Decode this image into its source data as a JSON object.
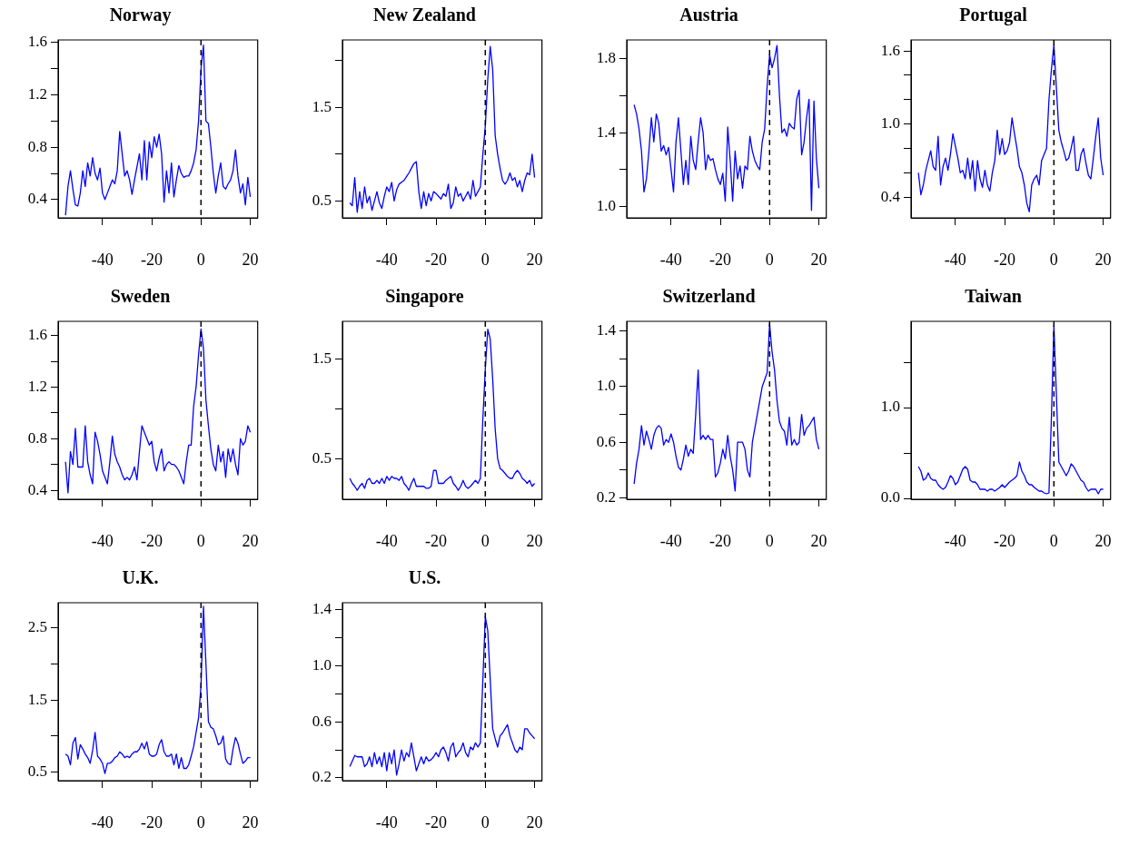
{
  "chart_data": [
    {
      "type": "line",
      "title": "Norway",
      "color": "#0000ff",
      "marker": "none",
      "xlim": [
        -58,
        23
      ],
      "xticks": [
        -40,
        -20,
        0,
        20
      ],
      "ylim": [
        0.26,
        1.62
      ],
      "yticks": [
        0.4,
        {
          "value": 0.6,
          "label": null
        },
        0.8,
        {
          "value": 1,
          "label": null
        },
        1.2,
        {
          "value": 1.4,
          "label": null
        },
        1.6
      ],
      "ref_lines": [
        {
          "axis": "x",
          "value": 0,
          "color": "#000000",
          "line_style": "dashed"
        }
      ],
      "x": [
        -55,
        -54,
        -53,
        -52,
        -51,
        -50,
        -49,
        -48,
        -47,
        -46,
        -45,
        -44,
        -43,
        -42,
        -41,
        -40,
        -39,
        -38,
        -37,
        -36,
        -35,
        -34,
        -33,
        -32,
        -31,
        -30,
        -29,
        -28,
        -27,
        -26,
        -25,
        -24,
        -23,
        -22,
        -21,
        -20,
        -19,
        -18,
        -17,
        -16,
        -15,
        -14,
        -13,
        -12,
        -11,
        -10,
        -9,
        -8,
        -7,
        -6,
        -5,
        -4,
        -3,
        -2,
        -1,
        0,
        1,
        2,
        3,
        4,
        5,
        6,
        7,
        8,
        9,
        10,
        11,
        12,
        13,
        14,
        15,
        16,
        17,
        18,
        19,
        20
      ],
      "values": [
        0.28,
        0.5,
        0.62,
        0.48,
        0.36,
        0.35,
        0.45,
        0.62,
        0.5,
        0.68,
        0.58,
        0.72,
        0.6,
        0.55,
        0.64,
        0.45,
        0.4,
        0.45,
        0.5,
        0.55,
        0.52,
        0.62,
        0.92,
        0.75,
        0.58,
        0.62,
        0.55,
        0.44,
        0.55,
        0.65,
        0.75,
        0.55,
        0.85,
        0.55,
        0.84,
        0.72,
        0.88,
        0.8,
        0.9,
        0.75,
        0.38,
        0.62,
        0.45,
        0.68,
        0.42,
        0.55,
        0.66,
        0.6,
        0.57,
        0.58,
        0.58,
        0.62,
        0.68,
        0.78,
        1.0,
        1.4,
        1.58,
        1.0,
        0.98,
        0.8,
        0.6,
        0.45,
        0.58,
        0.68,
        0.5,
        0.48,
        0.52,
        0.55,
        0.62,
        0.78,
        0.58,
        0.45,
        0.52,
        0.36,
        0.57,
        0.42
      ]
    },
    {
      "type": "line",
      "title": "New Zealand",
      "color": "#0000ff",
      "marker": "none",
      "xlim": [
        -58,
        23
      ],
      "xticks": [
        -40,
        -20,
        0,
        20
      ],
      "ylim": [
        0.32,
        2.22
      ],
      "yticks": [
        0.5,
        {
          "value": 1,
          "label": null
        },
        1.5,
        {
          "value": 2,
          "label": null
        }
      ],
      "ref_lines": [
        {
          "axis": "x",
          "value": 0,
          "color": "#000000",
          "line_style": "dashed"
        }
      ],
      "x": [
        -55,
        -54,
        -53,
        -52,
        -51,
        -50,
        -49,
        -48,
        -47,
        -46,
        -45,
        -44,
        -43,
        -42,
        -41,
        -40,
        -39,
        -38,
        -37,
        -36,
        -35,
        -34,
        -33,
        -32,
        -31,
        -30,
        -29,
        -28,
        -27,
        -26,
        -25,
        -24,
        -23,
        -22,
        -21,
        -20,
        -19,
        -18,
        -17,
        -16,
        -15,
        -14,
        -13,
        -12,
        -11,
        -10,
        -9,
        -8,
        -7,
        -6,
        -5,
        -4,
        -3,
        -2,
        -1,
        0,
        1,
        2,
        3,
        4,
        5,
        6,
        7,
        8,
        9,
        10,
        11,
        12,
        13,
        14,
        15,
        16,
        17,
        18,
        19,
        20
      ],
      "values": [
        0.48,
        0.45,
        0.75,
        0.38,
        0.6,
        0.42,
        0.65,
        0.48,
        0.55,
        0.4,
        0.5,
        0.6,
        0.48,
        0.42,
        0.55,
        0.65,
        0.6,
        0.7,
        0.5,
        0.62,
        0.68,
        0.7,
        0.72,
        0.76,
        0.8,
        0.85,
        0.9,
        0.92,
        0.6,
        0.42,
        0.6,
        0.45,
        0.58,
        0.5,
        0.6,
        0.58,
        0.55,
        0.52,
        0.58,
        0.55,
        0.68,
        0.42,
        0.48,
        0.65,
        0.55,
        0.58,
        0.5,
        0.55,
        0.6,
        0.52,
        0.72,
        0.55,
        0.6,
        0.65,
        1.0,
        1.3,
        1.8,
        2.15,
        1.9,
        1.2,
        1.0,
        0.85,
        0.72,
        0.68,
        0.72,
        0.8,
        0.72,
        0.75,
        0.65,
        0.72,
        0.6,
        0.72,
        0.8,
        0.78,
        1.0,
        0.75
      ]
    },
    {
      "type": "line",
      "title": "Austria",
      "color": "#0000ff",
      "marker": "none",
      "xlim": [
        -58,
        23
      ],
      "xticks": [
        -40,
        -20,
        0,
        20
      ],
      "ylim": [
        0.94,
        1.9
      ],
      "yticks": [
        {
          "value": 1,
          "label": "1.0"
        },
        {
          "value": 1.2,
          "label": null
        },
        1.4,
        {
          "value": 1.6,
          "label": null
        },
        1.8
      ],
      "ref_lines": [
        {
          "axis": "x",
          "value": 0,
          "color": "#000000",
          "line_style": "dashed"
        }
      ],
      "x": [
        -55,
        -54,
        -53,
        -52,
        -51,
        -50,
        -49,
        -48,
        -47,
        -46,
        -45,
        -44,
        -43,
        -42,
        -41,
        -40,
        -39,
        -38,
        -37,
        -36,
        -35,
        -34,
        -33,
        -32,
        -31,
        -30,
        -29,
        -28,
        -27,
        -26,
        -25,
        -24,
        -23,
        -22,
        -21,
        -20,
        -19,
        -18,
        -17,
        -16,
        -15,
        -14,
        -13,
        -12,
        -11,
        -10,
        -9,
        -8,
        -7,
        -6,
        -5,
        -4,
        -3,
        -2,
        -1,
        0,
        1,
        2,
        3,
        4,
        5,
        6,
        7,
        8,
        9,
        10,
        11,
        12,
        13,
        14,
        15,
        16,
        17,
        18,
        19,
        20
      ],
      "values": [
        1.55,
        1.5,
        1.42,
        1.3,
        1.08,
        1.15,
        1.3,
        1.48,
        1.35,
        1.5,
        1.45,
        1.3,
        1.33,
        1.28,
        1.32,
        1.2,
        1.08,
        1.35,
        1.48,
        1.3,
        1.12,
        1.25,
        1.12,
        1.38,
        1.25,
        1.2,
        1.35,
        1.48,
        1.4,
        1.2,
        1.28,
        1.25,
        1.26,
        1.2,
        1.15,
        1.12,
        1.18,
        1.03,
        1.43,
        1.25,
        1.03,
        1.3,
        1.15,
        1.22,
        1.1,
        1.22,
        1.2,
        1.38,
        1.3,
        1.25,
        1.22,
        1.2,
        1.35,
        1.42,
        1.65,
        1.82,
        1.75,
        1.8,
        1.87,
        1.6,
        1.4,
        1.42,
        1.38,
        1.45,
        1.43,
        1.42,
        1.58,
        1.63,
        1.28,
        1.35,
        1.48,
        1.58,
        0.98,
        1.57,
        1.26,
        1.1
      ]
    },
    {
      "type": "line",
      "title": "Portugal",
      "color": "#0000ff",
      "marker": "none",
      "xlim": [
        -58,
        23
      ],
      "xticks": [
        -40,
        -20,
        0,
        20
      ],
      "ylim": [
        0.23,
        1.69
      ],
      "yticks": [
        0.4,
        {
          "value": 0.6,
          "label": null
        },
        {
          "value": 0.8,
          "label": null
        },
        {
          "value": 1,
          "label": "1.0"
        },
        {
          "value": 1.2,
          "label": null
        },
        {
          "value": 1.4,
          "label": null
        },
        1.6
      ],
      "ref_lines": [
        {
          "axis": "x",
          "value": 0,
          "color": "#000000",
          "line_style": "dashed"
        }
      ],
      "x": [
        -55,
        -54,
        -53,
        -52,
        -51,
        -50,
        -49,
        -48,
        -47,
        -46,
        -45,
        -44,
        -43,
        -42,
        -41,
        -40,
        -39,
        -38,
        -37,
        -36,
        -35,
        -34,
        -33,
        -32,
        -31,
        -30,
        -29,
        -28,
        -27,
        -26,
        -25,
        -24,
        -23,
        -22,
        -21,
        -20,
        -19,
        -18,
        -17,
        -16,
        -15,
        -14,
        -13,
        -12,
        -11,
        -10,
        -9,
        -8,
        -7,
        -6,
        -5,
        -4,
        -3,
        -2,
        -1,
        0,
        1,
        2,
        3,
        4,
        5,
        6,
        7,
        8,
        9,
        10,
        11,
        12,
        13,
        14,
        15,
        16,
        17,
        18,
        19,
        20
      ],
      "values": [
        0.6,
        0.42,
        0.5,
        0.62,
        0.7,
        0.78,
        0.65,
        0.62,
        0.9,
        0.5,
        0.65,
        0.72,
        0.62,
        0.75,
        0.92,
        0.82,
        0.72,
        0.6,
        0.62,
        0.55,
        0.72,
        0.55,
        0.7,
        0.45,
        0.7,
        0.55,
        0.48,
        0.62,
        0.5,
        0.45,
        0.6,
        0.7,
        0.95,
        0.75,
        0.88,
        0.75,
        0.78,
        0.85,
        1.05,
        0.92,
        0.8,
        0.65,
        0.6,
        0.5,
        0.35,
        0.28,
        0.5,
        0.55,
        0.58,
        0.5,
        0.7,
        0.75,
        0.8,
        1.2,
        1.45,
        1.65,
        1.3,
        0.95,
        0.85,
        0.78,
        0.7,
        0.72,
        0.8,
        0.9,
        0.62,
        0.62,
        0.75,
        0.8,
        0.68,
        0.58,
        0.55,
        0.72,
        0.9,
        1.05,
        0.72,
        0.58
      ]
    },
    {
      "type": "line",
      "title": "Sweden",
      "color": "#0000ff",
      "marker": "none",
      "xlim": [
        -58,
        23
      ],
      "xticks": [
        -40,
        -20,
        0,
        20
      ],
      "ylim": [
        0.33,
        1.71
      ],
      "yticks": [
        0.4,
        {
          "value": 0.6,
          "label": null
        },
        0.8,
        {
          "value": 1,
          "label": null
        },
        1.2,
        {
          "value": 1.4,
          "label": null
        },
        1.6
      ],
      "ref_lines": [
        {
          "axis": "x",
          "value": 0,
          "color": "#000000",
          "line_style": "dashed"
        }
      ],
      "x": [
        -55,
        -54,
        -53,
        -52,
        -51,
        -50,
        -49,
        -48,
        -47,
        -46,
        -45,
        -44,
        -43,
        -42,
        -41,
        -40,
        -39,
        -38,
        -37,
        -36,
        -35,
        -34,
        -33,
        -32,
        -31,
        -30,
        -29,
        -28,
        -27,
        -26,
        -25,
        -24,
        -23,
        -22,
        -21,
        -20,
        -19,
        -18,
        -17,
        -16,
        -15,
        -14,
        -13,
        -12,
        -11,
        -10,
        -9,
        -8,
        -7,
        -6,
        -5,
        -4,
        -3,
        -2,
        -1,
        0,
        1,
        2,
        3,
        4,
        5,
        6,
        7,
        8,
        9,
        10,
        11,
        12,
        13,
        14,
        15,
        16,
        17,
        18,
        19,
        20
      ],
      "values": [
        0.62,
        0.38,
        0.7,
        0.6,
        0.88,
        0.58,
        0.58,
        0.58,
        0.9,
        0.62,
        0.52,
        0.45,
        0.85,
        0.78,
        0.68,
        0.55,
        0.5,
        0.45,
        0.62,
        0.82,
        0.68,
        0.62,
        0.58,
        0.52,
        0.48,
        0.5,
        0.48,
        0.52,
        0.58,
        0.48,
        0.7,
        0.9,
        0.85,
        0.8,
        0.75,
        0.78,
        0.62,
        0.55,
        0.65,
        0.72,
        0.55,
        0.6,
        0.62,
        0.6,
        0.6,
        0.58,
        0.55,
        0.5,
        0.45,
        0.62,
        0.75,
        0.75,
        1.05,
        1.2,
        1.45,
        1.65,
        1.5,
        1.1,
        0.9,
        0.72,
        0.6,
        0.55,
        0.75,
        0.62,
        0.7,
        0.5,
        0.72,
        0.62,
        0.72,
        0.6,
        0.52,
        0.8,
        0.75,
        0.78,
        0.9,
        0.85
      ]
    },
    {
      "type": "line",
      "title": "Singapore",
      "color": "#0000ff",
      "marker": "none",
      "xlim": [
        -58,
        23
      ],
      "xticks": [
        -40,
        -20,
        0,
        20
      ],
      "ylim": [
        0.09,
        1.88
      ],
      "yticks": [
        0.5,
        {
          "value": 1,
          "label": null
        },
        1.5
      ],
      "ref_lines": [
        {
          "axis": "x",
          "value": 0,
          "color": "#000000",
          "line_style": "dashed"
        }
      ],
      "x": [
        -55,
        -54,
        -53,
        -52,
        -51,
        -50,
        -49,
        -48,
        -47,
        -46,
        -45,
        -44,
        -43,
        -42,
        -41,
        -40,
        -39,
        -38,
        -37,
        -36,
        -35,
        -34,
        -33,
        -32,
        -31,
        -30,
        -29,
        -28,
        -27,
        -26,
        -25,
        -24,
        -23,
        -22,
        -21,
        -20,
        -19,
        -18,
        -17,
        -16,
        -15,
        -14,
        -13,
        -12,
        -11,
        -10,
        -9,
        -8,
        -7,
        -6,
        -5,
        -4,
        -3,
        -2,
        -1,
        0,
        1,
        2,
        3,
        4,
        5,
        6,
        7,
        8,
        9,
        10,
        11,
        12,
        13,
        14,
        15,
        16,
        17,
        18,
        19,
        20
      ],
      "values": [
        0.3,
        0.25,
        0.22,
        0.18,
        0.22,
        0.25,
        0.2,
        0.28,
        0.3,
        0.25,
        0.25,
        0.28,
        0.25,
        0.3,
        0.25,
        0.32,
        0.28,
        0.32,
        0.3,
        0.3,
        0.28,
        0.32,
        0.25,
        0.22,
        0.18,
        0.25,
        0.3,
        0.22,
        0.22,
        0.22,
        0.22,
        0.2,
        0.2,
        0.22,
        0.38,
        0.38,
        0.25,
        0.25,
        0.25,
        0.28,
        0.3,
        0.32,
        0.25,
        0.22,
        0.18,
        0.22,
        0.28,
        0.22,
        0.2,
        0.22,
        0.25,
        0.28,
        0.25,
        0.3,
        0.9,
        1.4,
        1.8,
        1.7,
        1.3,
        0.8,
        0.5,
        0.4,
        0.38,
        0.35,
        0.32,
        0.3,
        0.3,
        0.35,
        0.38,
        0.35,
        0.3,
        0.28,
        0.25,
        0.28,
        0.22,
        0.25
      ]
    },
    {
      "type": "line",
      "title": "Switzerland",
      "color": "#0000ff",
      "marker": "none",
      "xlim": [
        -58,
        23
      ],
      "xticks": [
        -40,
        -20,
        0,
        20
      ],
      "ylim": [
        0.19,
        1.47
      ],
      "yticks": [
        0.2,
        {
          "value": 0.4,
          "label": null
        },
        0.6,
        {
          "value": 0.8,
          "label": null
        },
        {
          "value": 1,
          "label": "1.0"
        },
        {
          "value": 1.2,
          "label": null
        },
        1.4
      ],
      "ref_lines": [
        {
          "axis": "x",
          "value": 0,
          "color": "#000000",
          "line_style": "dashed"
        }
      ],
      "x": [
        -55,
        -54,
        -53,
        -52,
        -51,
        -50,
        -49,
        -48,
        -47,
        -46,
        -45,
        -44,
        -43,
        -42,
        -41,
        -40,
        -39,
        -38,
        -37,
        -36,
        -35,
        -34,
        -33,
        -32,
        -31,
        -30,
        -29,
        -28,
        -27,
        -26,
        -25,
        -24,
        -23,
        -22,
        -21,
        -20,
        -19,
        -18,
        -17,
        -16,
        -15,
        -14,
        -13,
        -12,
        -11,
        -10,
        -9,
        -8,
        -7,
        -6,
        -5,
        -4,
        -3,
        -2,
        -1,
        0,
        1,
        2,
        3,
        4,
        5,
        6,
        7,
        8,
        9,
        10,
        11,
        12,
        13,
        14,
        15,
        16,
        17,
        18,
        19,
        20
      ],
      "values": [
        0.3,
        0.45,
        0.55,
        0.72,
        0.58,
        0.68,
        0.62,
        0.55,
        0.65,
        0.7,
        0.72,
        0.7,
        0.58,
        0.62,
        0.6,
        0.66,
        0.6,
        0.5,
        0.42,
        0.4,
        0.48,
        0.58,
        0.5,
        0.55,
        0.52,
        0.8,
        1.12,
        0.62,
        0.65,
        0.62,
        0.65,
        0.62,
        0.62,
        0.35,
        0.38,
        0.45,
        0.55,
        0.48,
        0.65,
        0.5,
        0.4,
        0.25,
        0.6,
        0.6,
        0.6,
        0.55,
        0.4,
        0.35,
        0.6,
        0.7,
        0.8,
        0.9,
        1.0,
        1.05,
        1.1,
        1.45,
        1.25,
        1.12,
        0.9,
        0.75,
        0.7,
        0.68,
        0.58,
        0.78,
        0.58,
        0.62,
        0.58,
        0.6,
        0.8,
        0.65,
        0.7,
        0.72,
        0.75,
        0.78,
        0.62,
        0.55
      ]
    },
    {
      "type": "line",
      "title": "Taiwan",
      "color": "#0000ff",
      "marker": "none",
      "xlim": [
        -58,
        23
      ],
      "xticks": [
        -40,
        -20,
        0,
        20
      ],
      "ylim": [
        -0.01,
        1.95
      ],
      "yticks": [
        {
          "value": 0,
          "label": "0.0"
        },
        {
          "value": 0.5,
          "label": null
        },
        {
          "value": 1,
          "label": "1.0"
        },
        {
          "value": 1.5,
          "label": null
        }
      ],
      "ref_lines": [
        {
          "axis": "x",
          "value": 0,
          "color": "#000000",
          "line_style": "dashed"
        }
      ],
      "x": [
        -55,
        -54,
        -53,
        -52,
        -51,
        -50,
        -49,
        -48,
        -47,
        -46,
        -45,
        -44,
        -43,
        -42,
        -41,
        -40,
        -39,
        -38,
        -37,
        -36,
        -35,
        -34,
        -33,
        -32,
        -31,
        -30,
        -29,
        -28,
        -27,
        -26,
        -25,
        -24,
        -23,
        -22,
        -21,
        -20,
        -19,
        -18,
        -17,
        -16,
        -15,
        -14,
        -13,
        -12,
        -11,
        -10,
        -9,
        -8,
        -7,
        -6,
        -5,
        -4,
        -3,
        -2,
        -1,
        0,
        1,
        2,
        3,
        4,
        5,
        6,
        7,
        8,
        9,
        10,
        11,
        12,
        13,
        14,
        15,
        16,
        17,
        18,
        19,
        20
      ],
      "values": [
        0.35,
        0.3,
        0.2,
        0.22,
        0.28,
        0.22,
        0.2,
        0.2,
        0.15,
        0.12,
        0.1,
        0.12,
        0.18,
        0.25,
        0.22,
        0.15,
        0.18,
        0.25,
        0.32,
        0.35,
        0.32,
        0.2,
        0.18,
        0.18,
        0.15,
        0.1,
        0.1,
        0.1,
        0.08,
        0.1,
        0.1,
        0.08,
        0.1,
        0.12,
        0.15,
        0.12,
        0.15,
        0.18,
        0.2,
        0.22,
        0.25,
        0.4,
        0.3,
        0.25,
        0.18,
        0.15,
        0.15,
        0.12,
        0.1,
        0.08,
        0.08,
        0.06,
        0.05,
        0.06,
        0.9,
        1.9,
        1.15,
        0.4,
        0.35,
        0.3,
        0.25,
        0.3,
        0.38,
        0.35,
        0.3,
        0.25,
        0.2,
        0.18,
        0.12,
        0.08,
        0.1,
        0.1,
        0.1,
        0.05,
        0.1,
        0.1
      ]
    },
    {
      "type": "line",
      "title": "U.K.",
      "color": "#0000ff",
      "marker": "none",
      "xlim": [
        -58,
        23
      ],
      "xticks": [
        -40,
        -20,
        0,
        20
      ],
      "ylim": [
        0.38,
        2.85
      ],
      "yticks": [
        0.5,
        {
          "value": 1,
          "label": null
        },
        1.5,
        {
          "value": 2,
          "label": null
        },
        2.5
      ],
      "ref_lines": [
        {
          "axis": "x",
          "value": 0,
          "color": "#000000",
          "line_style": "dashed"
        }
      ],
      "x": [
        -55,
        -54,
        -53,
        -52,
        -51,
        -50,
        -49,
        -48,
        -47,
        -46,
        -45,
        -44,
        -43,
        -42,
        -41,
        -40,
        -39,
        -38,
        -37,
        -36,
        -35,
        -34,
        -33,
        -32,
        -31,
        -30,
        -29,
        -28,
        -27,
        -26,
        -25,
        -24,
        -23,
        -22,
        -21,
        -20,
        -19,
        -18,
        -17,
        -16,
        -15,
        -14,
        -13,
        -12,
        -11,
        -10,
        -9,
        -8,
        -7,
        -6,
        -5,
        -4,
        -3,
        -2,
        -1,
        0,
        1,
        2,
        3,
        4,
        5,
        6,
        7,
        8,
        9,
        10,
        11,
        12,
        13,
        14,
        15,
        16,
        17,
        18,
        19,
        20
      ],
      "values": [
        0.75,
        0.72,
        0.6,
        0.9,
        0.98,
        0.68,
        0.88,
        0.82,
        0.75,
        0.7,
        0.62,
        0.8,
        1.05,
        0.72,
        0.68,
        0.62,
        0.48,
        0.62,
        0.62,
        0.65,
        0.7,
        0.72,
        0.78,
        0.75,
        0.7,
        0.72,
        0.7,
        0.75,
        0.78,
        0.78,
        0.82,
        0.9,
        0.82,
        0.92,
        0.75,
        0.72,
        0.72,
        0.75,
        0.88,
        0.95,
        0.78,
        0.72,
        0.72,
        0.75,
        0.6,
        0.75,
        0.55,
        0.7,
        0.55,
        0.55,
        0.6,
        0.72,
        0.85,
        1.05,
        1.25,
        1.7,
        2.8,
        2.0,
        1.2,
        1.12,
        1.1,
        1.0,
        0.88,
        0.9,
        1.0,
        0.68,
        0.62,
        0.6,
        0.82,
        0.98,
        0.9,
        0.75,
        0.62,
        0.65,
        0.7,
        0.7
      ]
    },
    {
      "type": "line",
      "title": "U.S.",
      "color": "#0000ff",
      "marker": "none",
      "xlim": [
        -58,
        23
      ],
      "xticks": [
        -40,
        -20,
        0,
        20
      ],
      "ylim": [
        0.18,
        1.45
      ],
      "yticks": [
        0.2,
        {
          "value": 0.4,
          "label": null
        },
        0.6,
        {
          "value": 0.8,
          "label": null
        },
        {
          "value": 1,
          "label": "1.0"
        },
        {
          "value": 1.2,
          "label": null
        },
        1.4
      ],
      "ref_lines": [
        {
          "axis": "x",
          "value": 0,
          "color": "#000000",
          "line_style": "dashed"
        }
      ],
      "x": [
        -55,
        -54,
        -53,
        -52,
        -51,
        -50,
        -49,
        -48,
        -47,
        -46,
        -45,
        -44,
        -43,
        -42,
        -41,
        -40,
        -39,
        -38,
        -37,
        -36,
        -35,
        -34,
        -33,
        -32,
        -31,
        -30,
        -29,
        -28,
        -27,
        -26,
        -25,
        -24,
        -23,
        -22,
        -21,
        -20,
        -19,
        -18,
        -17,
        -16,
        -15,
        -14,
        -13,
        -12,
        -11,
        -10,
        -9,
        -8,
        -7,
        -6,
        -5,
        -4,
        -3,
        -2,
        -1,
        0,
        1,
        2,
        3,
        4,
        5,
        6,
        7,
        8,
        9,
        10,
        11,
        12,
        13,
        14,
        15,
        16,
        17,
        18,
        19,
        20
      ],
      "values": [
        0.28,
        0.32,
        0.36,
        0.35,
        0.35,
        0.35,
        0.28,
        0.3,
        0.35,
        0.28,
        0.38,
        0.3,
        0.35,
        0.28,
        0.38,
        0.25,
        0.38,
        0.3,
        0.4,
        0.22,
        0.3,
        0.4,
        0.32,
        0.38,
        0.35,
        0.45,
        0.35,
        0.25,
        0.3,
        0.35,
        0.3,
        0.35,
        0.32,
        0.33,
        0.35,
        0.38,
        0.35,
        0.4,
        0.42,
        0.38,
        0.32,
        0.42,
        0.45,
        0.35,
        0.38,
        0.4,
        0.45,
        0.38,
        0.35,
        0.42,
        0.4,
        0.45,
        0.42,
        0.45,
        0.9,
        1.35,
        1.25,
        0.9,
        0.55,
        0.48,
        0.42,
        0.5,
        0.52,
        0.55,
        0.58,
        0.5,
        0.45,
        0.4,
        0.38,
        0.42,
        0.4,
        0.55,
        0.55,
        0.52,
        0.5,
        0.48
      ]
    }
  ]
}
